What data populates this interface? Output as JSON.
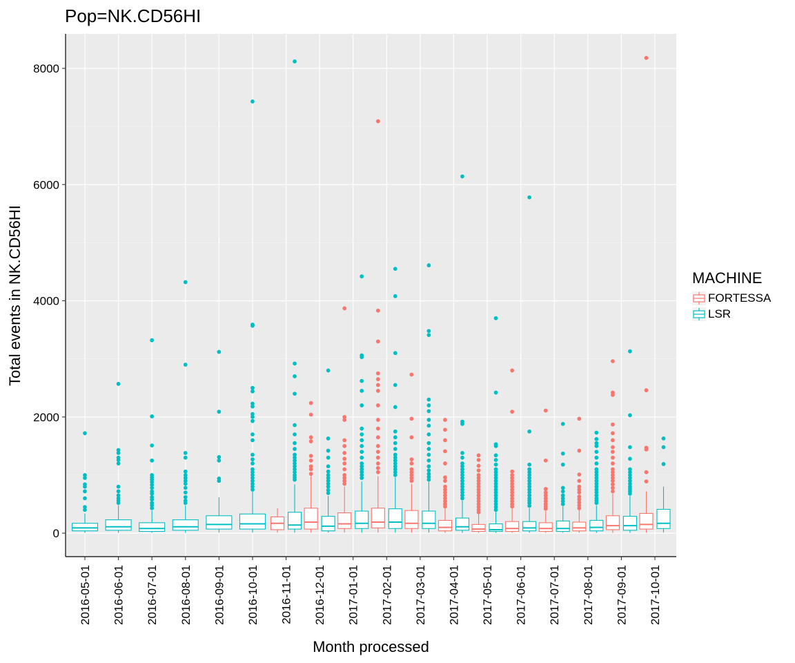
{
  "chart_data": {
    "type": "boxplot",
    "title": "Pop=NK.CD56HI",
    "xlabel": "Month processed",
    "ylabel": "Total events in NK.CD56HI",
    "ylim": [
      -400,
      8600
    ],
    "yticks": [
      0,
      2000,
      4000,
      6000,
      8000
    ],
    "grid": true,
    "legend": {
      "title": "MACHINE",
      "position": "right"
    },
    "categories": [
      "2016-05-01",
      "2016-06-01",
      "2016-07-01",
      "2016-08-01",
      "2016-09-01",
      "2016-10-01",
      "2016-11-01",
      "2016-12-01",
      "2017-01-01",
      "2017-02-01",
      "2017-03-01",
      "2017-04-01",
      "2017-05-01",
      "2017-06-01",
      "2017-07-01",
      "2017-08-01",
      "2017-09-01",
      "2017-10-01"
    ],
    "series": [
      {
        "name": "FORTESSA",
        "color": "#F8766D",
        "boxes": [
          {
            "cat": "2016-11-01",
            "min": 10,
            "q1": 60,
            "median": 170,
            "q3": 280,
            "max": 430,
            "outliers": []
          },
          {
            "cat": "2016-12-01",
            "min": 10,
            "q1": 70,
            "median": 190,
            "q3": 430,
            "max": 980,
            "outliers": [
              1020,
              1100,
              1150,
              1250,
              1330,
              1580,
              1650,
              2040,
              2240
            ]
          },
          {
            "cat": "2017-01-01",
            "min": 10,
            "q1": 80,
            "median": 160,
            "q3": 350,
            "max": 800,
            "outliers": [
              850,
              900,
              950,
              1000,
              1100,
              1200,
              1280,
              1380,
              1500,
              1600,
              1950,
              2000,
              3870
            ]
          },
          {
            "cat": "2017-02-01",
            "min": 10,
            "q1": 90,
            "median": 190,
            "q3": 430,
            "max": 980,
            "outliers": [
              1050,
              1120,
              1200,
              1300,
              1400,
              1500,
              1650,
              1800,
              1950,
              2200,
              2450,
              2550,
              2650,
              2750,
              3300,
              3830,
              7090
            ]
          },
          {
            "cat": "2017-03-01",
            "min": 10,
            "q1": 80,
            "median": 170,
            "q3": 390,
            "max": 850,
            "outliers": [
              900,
              950,
              1000,
              1050,
              1100,
              1200,
              1270,
              1650,
              1970,
              2730
            ]
          },
          {
            "cat": "2017-04-01",
            "min": 5,
            "q1": 40,
            "median": 100,
            "q3": 220,
            "max": 430,
            "outliers": [
              460,
              500,
              550,
              600,
              650,
              700,
              750,
              800,
              900,
              960,
              1200,
              1410,
              1600,
              1780,
              1950
            ]
          },
          {
            "cat": "2017-05-01",
            "min": 5,
            "q1": 30,
            "median": 70,
            "q3": 150,
            "max": 330,
            "outliers": [
              360,
              400,
              450,
              500,
              550,
              600,
              650,
              700,
              750,
              800,
              850,
              900,
              950,
              1000,
              1080,
              1160,
              1260,
              1340
            ]
          },
          {
            "cat": "2017-06-01",
            "min": 5,
            "q1": 30,
            "median": 80,
            "q3": 200,
            "max": 430,
            "outliers": [
              460,
              500,
              550,
              600,
              650,
              700,
              750,
              800,
              850,
              900,
              950,
              1000,
              1060,
              2090,
              2800
            ]
          },
          {
            "cat": "2017-07-01",
            "min": 5,
            "q1": 30,
            "median": 80,
            "q3": 180,
            "max": 380,
            "outliers": [
              420,
              460,
              500,
              550,
              600,
              650,
              700,
              760,
              1250,
              2110
            ]
          },
          {
            "cat": "2017-08-01",
            "min": 5,
            "q1": 40,
            "median": 90,
            "q3": 190,
            "max": 400,
            "outliers": [
              430,
              480,
              530,
              580,
              630,
              700,
              750,
              800,
              900,
              1010,
              1420,
              1970
            ]
          },
          {
            "cat": "2017-09-01",
            "min": 5,
            "q1": 60,
            "median": 130,
            "q3": 300,
            "max": 680,
            "outliers": [
              720,
              780,
              840,
              900,
              950,
              1000,
              1050,
              1100,
              1200,
              1300,
              1400,
              1480,
              1600,
              1720,
              1870,
              2380,
              2420,
              2960
            ]
          },
          {
            "cat": "2017-10-01",
            "min": 10,
            "q1": 70,
            "median": 150,
            "q3": 340,
            "max": 720,
            "outliers": [
              890,
              1050,
              1440,
              1470,
              2460,
              8180
            ]
          }
        ]
      },
      {
        "name": "LSR",
        "color": "#00BFC4",
        "boxes": [
          {
            "cat": "2016-05-01",
            "min": 5,
            "q1": 40,
            "median": 90,
            "q3": 170,
            "max": 340,
            "outliers": [
              400,
              450,
              600,
              720,
              800,
              840,
              950,
              1000,
              1720
            ]
          },
          {
            "cat": "2016-06-01",
            "min": 5,
            "q1": 50,
            "median": 110,
            "q3": 230,
            "max": 480,
            "outliers": [
              520,
              560,
              600,
              650,
              720,
              800,
              1200,
              1260,
              1300,
              1380,
              1430,
              2570
            ]
          },
          {
            "cat": "2016-07-01",
            "min": 5,
            "q1": 30,
            "median": 80,
            "q3": 180,
            "max": 390,
            "outliers": [
              430,
              480,
              520,
              580,
              620,
              680,
              720,
              780,
              830,
              880,
              920,
              960,
              1000,
              1250,
              1510,
              2010,
              3320
            ]
          },
          {
            "cat": "2016-08-01",
            "min": 5,
            "q1": 50,
            "median": 110,
            "q3": 230,
            "max": 480,
            "outliers": [
              520,
              560,
              620,
              700,
              780,
              850,
              900,
              950,
              1000,
              1060,
              1300,
              1380,
              2900,
              4320
            ]
          },
          {
            "cat": "2016-09-01",
            "min": 10,
            "q1": 70,
            "median": 150,
            "q3": 300,
            "max": 620,
            "outliers": [
              900,
              940,
              1250,
              1310,
              2090,
              3120
            ]
          },
          {
            "cat": "2016-10-01",
            "min": 10,
            "q1": 70,
            "median": 160,
            "q3": 330,
            "max": 720,
            "outliers": [
              750,
              800,
              850,
              900,
              950,
              1000,
              1050,
              1100,
              1200,
              1270,
              1350,
              1600,
              1700,
              1930,
              2000,
              2050,
              2180,
              2230,
              2440,
              2500,
              3570,
              3590,
              7430
            ]
          },
          {
            "cat": "2016-11-01",
            "min": 10,
            "q1": 70,
            "median": 140,
            "q3": 360,
            "max": 840,
            "outliers": [
              920,
              960,
              1000,
              1050,
              1100,
              1150,
              1200,
              1250,
              1300,
              1350,
              1450,
              1550,
              1700,
              1860,
              2400,
              2700,
              2920,
              8120
            ]
          },
          {
            "cat": "2016-12-01",
            "min": 10,
            "q1": 40,
            "median": 120,
            "q3": 290,
            "max": 640,
            "outliers": [
              690,
              740,
              800,
              850,
              900,
              950,
              1000,
              1060,
              1150,
              1300,
              1420,
              1630,
              2800
            ]
          },
          {
            "cat": "2017-01-01",
            "min": 10,
            "q1": 80,
            "median": 170,
            "q3": 380,
            "max": 890,
            "outliers": [
              950,
              1000,
              1050,
              1100,
              1150,
              1200,
              1300,
              1400,
              1500,
              1600,
              1700,
              1800,
              2200,
              2450,
              2620,
              3030,
              3060,
              4420
            ]
          },
          {
            "cat": "2017-02-01",
            "min": 10,
            "q1": 80,
            "median": 190,
            "q3": 420,
            "max": 960,
            "outliers": [
              1000,
              1050,
              1100,
              1150,
              1200,
              1250,
              1300,
              1350,
              1450,
              1550,
              1650,
              1750,
              2170,
              2550,
              3100,
              4080,
              4550
            ]
          },
          {
            "cat": "2017-03-01",
            "min": 10,
            "q1": 80,
            "median": 170,
            "q3": 380,
            "max": 880,
            "outliers": [
              920,
              970,
              1020,
              1080,
              1150,
              1250,
              1350,
              1450,
              1550,
              1700,
              1850,
              1950,
              2100,
              2200,
              2300,
              3410,
              3480,
              4610
            ]
          },
          {
            "cat": "2017-04-01",
            "min": 5,
            "q1": 50,
            "median": 110,
            "q3": 260,
            "max": 560,
            "outliers": [
              600,
              650,
              700,
              750,
              800,
              850,
              900,
              950,
              1000,
              1050,
              1100,
              1150,
              1200,
              1300,
              1380,
              1880,
              1920,
              6140
            ]
          },
          {
            "cat": "2017-05-01",
            "min": 5,
            "q1": 30,
            "median": 60,
            "q3": 160,
            "max": 360,
            "outliers": [
              400,
              450,
              500,
              550,
              600,
              650,
              700,
              750,
              800,
              850,
              900,
              950,
              1000,
              1050,
              1100,
              1180,
              1260,
              1340,
              1500,
              1530,
              2420,
              3700
            ]
          },
          {
            "cat": "2017-06-01",
            "min": 5,
            "q1": 40,
            "median": 90,
            "q3": 200,
            "max": 430,
            "outliers": [
              470,
              520,
              560,
              600,
              650,
              700,
              750,
              800,
              850,
              900,
              950,
              1000,
              1050,
              1100,
              1180,
              1750,
              5780
            ]
          },
          {
            "cat": "2017-07-01",
            "min": 5,
            "q1": 30,
            "median": 80,
            "q3": 210,
            "max": 460,
            "outliers": [
              500,
              550,
              600,
              650,
              720,
              780,
              1180,
              1370,
              1880
            ]
          },
          {
            "cat": "2017-08-01",
            "min": 5,
            "q1": 40,
            "median": 100,
            "q3": 220,
            "max": 480,
            "outliers": [
              520,
              560,
              600,
              650,
              700,
              750,
              800,
              850,
              900,
              950,
              1000,
              1050,
              1100,
              1200,
              1300,
              1400,
              1500,
              1550,
              1620,
              1730
            ]
          },
          {
            "cat": "2017-09-01",
            "min": 5,
            "q1": 50,
            "median": 130,
            "q3": 290,
            "max": 640,
            "outliers": [
              680,
              720,
              760,
              800,
              850,
              900,
              950,
              1000,
              1050,
              1100,
              1280,
              1480,
              2030,
              3130
            ]
          },
          {
            "cat": "2017-10-01",
            "min": 10,
            "q1": 80,
            "median": 170,
            "q3": 410,
            "max": 800,
            "outliers": [
              1190,
              1480,
              1630
            ]
          }
        ]
      }
    ]
  }
}
